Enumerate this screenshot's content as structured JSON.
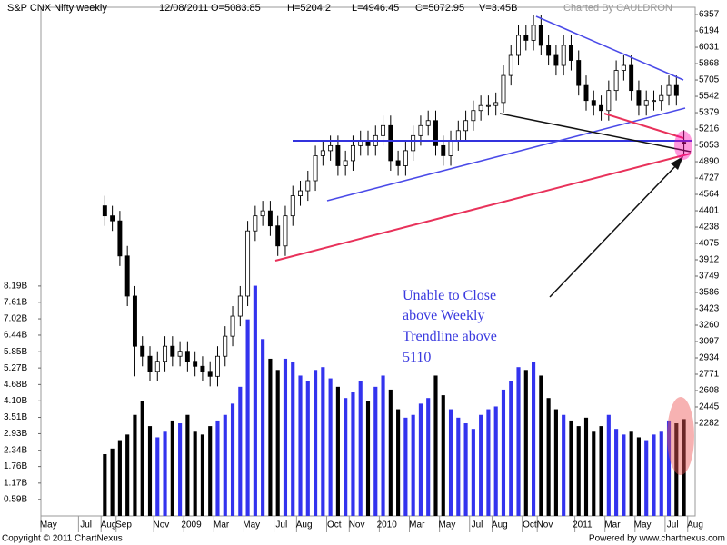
{
  "chart_data": {
    "type": "candlestick",
    "title": "S&P CNX Nifty weekly",
    "info": [
      "12/08/2011",
      "O=5083.85",
      "H=5204.2",
      "L=4946.45",
      "C=5072.95",
      "V=3.45B"
    ],
    "credit": "Charted By CAULDRON",
    "footer_left": "Copyright © 2011 ChartNexus",
    "footer_right": "Powered by www.chartnexus.com",
    "annotation": [
      "Unable to Close",
      "above Weekly",
      "Trendline above",
      "5110"
    ],
    "categories": [
      "May",
      null,
      null,
      null,
      null,
      "Jul",
      null,
      null,
      "Aug",
      null,
      "Sep",
      null,
      null,
      null,
      null,
      "Nov",
      null,
      null,
      null,
      "2009",
      null,
      null,
      null,
      "Mar",
      null,
      null,
      null,
      "May",
      null,
      null,
      null,
      "Jul",
      null,
      null,
      "Aug",
      null,
      null,
      null,
      "Oct",
      null,
      null,
      "Nov",
      null,
      null,
      null,
      "2010",
      null,
      null,
      null,
      "Mar",
      null,
      null,
      null,
      "May",
      null,
      null,
      null,
      "Jul",
      null,
      null,
      "Aug",
      null,
      null,
      null,
      "Oct",
      null,
      "Nov",
      null,
      null,
      null,
      null,
      "2011",
      null,
      null,
      null,
      "Mar",
      null,
      null,
      null,
      "May",
      null,
      null,
      null,
      "Jul",
      null,
      null,
      "Aug"
    ],
    "open": [
      null,
      null,
      null,
      null,
      null,
      null,
      null,
      null,
      4450,
      4350,
      4300,
      3950,
      3550,
      3050,
      2950,
      2800,
      2900,
      3050,
      2950,
      3000,
      2900,
      2850,
      2800,
      2750,
      2950,
      3150,
      3350,
      3550,
      4200,
      4350,
      4400,
      4250,
      4050,
      4350,
      4550,
      4600,
      4700,
      4950,
      5000,
      5050,
      4850,
      4900,
      5050,
      5100,
      5050,
      5150,
      5250,
      4900,
      4850,
      5000,
      5150,
      5250,
      5300,
      5050,
      4950,
      5100,
      5200,
      5300,
      5400,
      5450,
      5450,
      5480,
      5750,
      5950,
      6150,
      6100,
      6250,
      6050,
      5950,
      5850,
      6050,
      5900,
      5650,
      5500,
      5450,
      5400,
      5600,
      5800,
      5850,
      5600,
      5450,
      5500,
      5500,
      5550,
      5650,
      5083.85,
      null
    ],
    "high": [
      null,
      null,
      null,
      null,
      null,
      null,
      null,
      null,
      4550,
      4450,
      4400,
      4050,
      3650,
      3150,
      3050,
      3000,
      3150,
      3150,
      3100,
      3100,
      3000,
      2950,
      2900,
      3050,
      3250,
      3450,
      3650,
      4300,
      4450,
      4500,
      4500,
      4350,
      4450,
      4650,
      4700,
      4800,
      5050,
      5100,
      5150,
      5150,
      5000,
      5150,
      5200,
      5200,
      5250,
      5350,
      5350,
      5000,
      5100,
      5250,
      5350,
      5400,
      5400,
      5150,
      5200,
      5300,
      5400,
      5500,
      5550,
      5550,
      5580,
      5850,
      6050,
      6250,
      6250,
      6350,
      6350,
      6150,
      6050,
      6150,
      6150,
      6000,
      5750,
      5600,
      5550,
      5700,
      5900,
      5950,
      5950,
      5700,
      5600,
      5600,
      5650,
      5750,
      5750,
      5204.2,
      null
    ],
    "low": [
      null,
      null,
      null,
      null,
      null,
      null,
      null,
      null,
      4250,
      4200,
      3850,
      3450,
      2750,
      2850,
      2700,
      2700,
      2800,
      2850,
      2850,
      2800,
      2750,
      2700,
      2650,
      2650,
      2850,
      3050,
      3250,
      3450,
      4100,
      4250,
      4150,
      3950,
      3950,
      4250,
      4450,
      4500,
      4600,
      4850,
      4900,
      4750,
      4750,
      4800,
      4950,
      4950,
      4950,
      5050,
      4800,
      4750,
      4750,
      4900,
      5050,
      5150,
      4950,
      4850,
      4850,
      5000,
      5100,
      5200,
      5300,
      5350,
      5350,
      5380,
      5650,
      5850,
      6000,
      6000,
      5950,
      5850,
      5750,
      5750,
      5800,
      5550,
      5400,
      5350,
      5300,
      5300,
      5500,
      5700,
      5500,
      5350,
      5350,
      5400,
      5400,
      5450,
      5450,
      4946.45,
      null
    ],
    "close": [
      null,
      null,
      null,
      null,
      null,
      null,
      null,
      null,
      4350,
      4300,
      3950,
      3550,
      3050,
      2950,
      2800,
      2900,
      3050,
      2950,
      3000,
      2900,
      2850,
      2800,
      2750,
      2950,
      3150,
      3350,
      3550,
      4200,
      4350,
      4400,
      4250,
      4050,
      4350,
      4550,
      4600,
      4700,
      4950,
      5000,
      5050,
      4850,
      4900,
      5050,
      5100,
      5050,
      5150,
      5250,
      4900,
      4850,
      5000,
      5150,
      5250,
      5300,
      5050,
      4950,
      5100,
      5200,
      5300,
      5400,
      5450,
      5450,
      5480,
      5750,
      5950,
      6150,
      6100,
      6250,
      6050,
      5950,
      5850,
      6050,
      5900,
      5650,
      5500,
      5450,
      5400,
      5600,
      5800,
      5850,
      5600,
      5450,
      5500,
      5500,
      5550,
      5650,
      5550,
      5072.95,
      null
    ],
    "volume": [
      null,
      null,
      null,
      null,
      null,
      null,
      null,
      null,
      2.2,
      2.4,
      2.7,
      2.9,
      3.6,
      4.1,
      3.2,
      2.8,
      3.0,
      3.4,
      3.3,
      3.6,
      3.0,
      2.9,
      3.2,
      3.4,
      3.6,
      4.0,
      4.6,
      7.0,
      8.2,
      6.3,
      5.6,
      5.2,
      5.6,
      5.5,
      5.0,
      4.8,
      5.2,
      5.3,
      4.9,
      4.6,
      4.2,
      4.4,
      4.8,
      4.1,
      4.6,
      5.0,
      4.5,
      3.8,
      3.5,
      3.6,
      4.0,
      4.2,
      5.0,
      4.3,
      3.8,
      3.5,
      3.3,
      3.1,
      3.6,
      3.8,
      3.9,
      4.5,
      4.8,
      5.3,
      5.2,
      5.5,
      5.0,
      4.2,
      3.8,
      3.6,
      3.4,
      3.2,
      3.5,
      3.0,
      3.2,
      3.6,
      3.1,
      2.9,
      3.0,
      2.8,
      2.7,
      2.9,
      3.0,
      3.4,
      3.3,
      3.45,
      null
    ],
    "ylim": [
      1358,
      6430
    ],
    "yticks": [
      6357,
      6194,
      6031,
      5868,
      5705,
      5542,
      5379,
      5216,
      5053,
      4890,
      4727,
      4564,
      4401,
      4238,
      4075,
      3912,
      3749,
      3586,
      3423,
      3260,
      3097,
      2934,
      2771,
      2608,
      2445,
      2282
    ],
    "y2lim": [
      0,
      18.12
    ],
    "y2ticks": [
      {
        "value": 0.59,
        "label": "0.59B"
      },
      {
        "value": 1.17,
        "label": "1.17B"
      },
      {
        "value": 1.76,
        "label": "1.76B"
      },
      {
        "value": 2.34,
        "label": "2.34B"
      },
      {
        "value": 2.93,
        "label": "2.93B"
      },
      {
        "value": 3.51,
        "label": "3.51B"
      },
      {
        "value": 4.1,
        "label": "4.10B"
      },
      {
        "value": 4.68,
        "label": "4.68B"
      },
      {
        "value": 5.27,
        "label": "5.27B"
      },
      {
        "value": 5.85,
        "label": "5.85B"
      },
      {
        "value": 6.44,
        "label": "6.44B"
      },
      {
        "value": 7.02,
        "label": "7.02B"
      },
      {
        "value": 7.61,
        "label": "7.61B"
      },
      {
        "value": 8.19,
        "label": "8.19B"
      }
    ],
    "up_color": "#ffffff",
    "down_color": "#000000",
    "volume_up_color": "#3333ee",
    "volume_down_color": "#000000"
  }
}
